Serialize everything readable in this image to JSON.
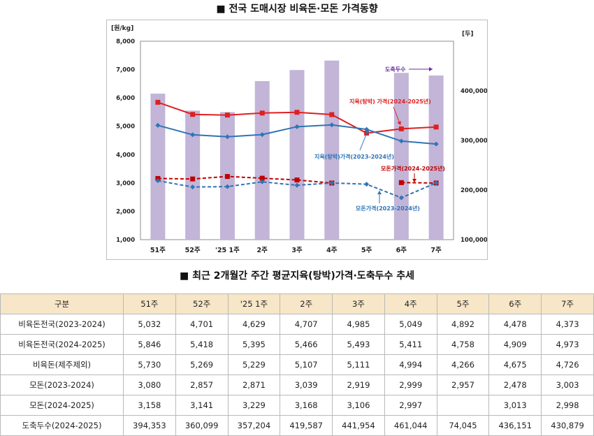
{
  "chart_title": "■ 전국 도매시장 비육돈·모돈 가격동향",
  "table_title": "■ 최근 2개월간 주간 평균지육(탕박)가격·도축두수 추세",
  "chart_data": {
    "type": "bar+line",
    "categories": [
      "51주",
      "52주",
      "'25 1주",
      "2주",
      "3주",
      "4주",
      "5주",
      "6주",
      "7주"
    ],
    "left_axis": {
      "unit": "[원/kg]",
      "range": [
        1000,
        8000
      ],
      "ticks": [
        "1,000",
        "2,000",
        "3,000",
        "4,000",
        "5,000",
        "6,000",
        "7,000",
        "8,000"
      ]
    },
    "right_axis": {
      "unit": "[두]",
      "range": [
        100000,
        500000
      ],
      "ticks": [
        "100,000",
        "200,000",
        "300,000",
        "400,000"
      ]
    },
    "bars": {
      "name": "도축두수",
      "color": "#c2b5d8",
      "values": [
        394353,
        360099,
        357204,
        419587,
        441954,
        461044,
        74045,
        436151,
        430879
      ]
    },
    "series": [
      {
        "name": "지육(탕박) 가격(2024-2025년)",
        "color": "#e02020",
        "style": "solid",
        "marker": "square",
        "values": [
          5846,
          5418,
          5395,
          5466,
          5493,
          5411,
          4758,
          4909,
          4973
        ]
      },
      {
        "name": "지육(탕박)가격(2023-2024년)",
        "color": "#2e75b6",
        "style": "solid",
        "marker": "diamond",
        "values": [
          5032,
          4701,
          4629,
          4707,
          4985,
          5049,
          4892,
          4478,
          4373
        ]
      },
      {
        "name": "모돈가격(2024-2025년)",
        "color": "#c00000",
        "style": "dashed",
        "marker": "square",
        "values": [
          3158,
          3141,
          3229,
          3168,
          3106,
          2997,
          null,
          3013,
          2998
        ]
      },
      {
        "name": "모돈가격(2023-2024년)",
        "color": "#2e75b6",
        "style": "dashed",
        "marker": "diamond",
        "values": [
          3080,
          2857,
          2871,
          3039,
          2919,
          2999,
          2957,
          2478,
          3003
        ]
      }
    ],
    "annotations": [
      {
        "text": "도축두수",
        "color": "#6a2ca0"
      },
      {
        "text": "지육(탕박) 가격(2024-2025년)",
        "color": "#e02020"
      },
      {
        "text": "지육(탕박)가격(2023-2024년)",
        "color": "#2e75b6"
      },
      {
        "text": "모돈가격(2024-2025년)",
        "color": "#c00000"
      },
      {
        "text": "모돈가격(2023-2024년)",
        "color": "#2e75b6"
      }
    ]
  },
  "table": {
    "headers": [
      "구분",
      "51주",
      "52주",
      "'25 1주",
      "2주",
      "3주",
      "4주",
      "5주",
      "6주",
      "7주"
    ],
    "rows": [
      [
        "비육돈전국(2023-2024)",
        "5,032",
        "4,701",
        "4,629",
        "4,707",
        "4,985",
        "5,049",
        "4,892",
        "4,478",
        "4,373"
      ],
      [
        "비육돈전국(2024-2025)",
        "5,846",
        "5,418",
        "5,395",
        "5,466",
        "5,493",
        "5,411",
        "4,758",
        "4,909",
        "4,973"
      ],
      [
        "비육돈(제주제외)",
        "5,730",
        "5,269",
        "5,229",
        "5,107",
        "5,111",
        "4,994",
        "4,266",
        "4,675",
        "4,726"
      ],
      [
        "모돈(2023-2024)",
        "3,080",
        "2,857",
        "2,871",
        "3,039",
        "2,919",
        "2,999",
        "2,957",
        "2,478",
        "3,003"
      ],
      [
        "모돈(2024-2025)",
        "3,158",
        "3,141",
        "3,229",
        "3,168",
        "3,106",
        "2,997",
        "",
        "3,013",
        "2,998"
      ],
      [
        "도축두수(2024-2025)",
        "394,353",
        "360,099",
        "357,204",
        "419,587",
        "441,954",
        "461,044",
        "74,045",
        "436,151",
        "430,879"
      ]
    ]
  }
}
